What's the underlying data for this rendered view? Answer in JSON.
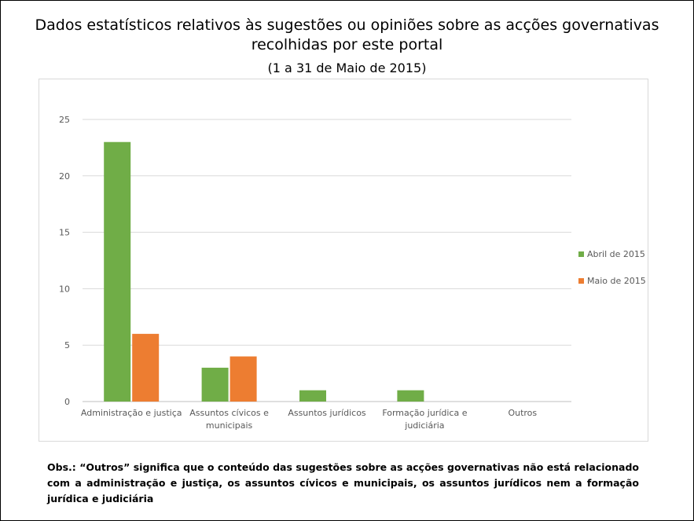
{
  "header": {
    "title": "Dados estatísticos relativos às sugestões ou opiniões sobre as acções governativas recolhidas por este portal",
    "subtitle": "(1 a 31 de Maio de 2015)"
  },
  "chart_data": {
    "type": "bar",
    "categories": [
      "Administração e justiça",
      "Assuntos cívicos e municipais",
      "Assuntos jurídicos",
      "Formação jurídica e judiciária",
      "Outros"
    ],
    "category_lines": [
      [
        "Administração e justiça"
      ],
      [
        "Assuntos cívicos e",
        "municipais"
      ],
      [
        "Assuntos jurídicos"
      ],
      [
        "Formação jurídica e",
        "judiciária"
      ],
      [
        "Outros"
      ]
    ],
    "series": [
      {
        "name": "Abril de 2015",
        "values": [
          23,
          3,
          1,
          1,
          0
        ],
        "color": "#70ad47"
      },
      {
        "name": "Maio de 2015",
        "values": [
          6,
          4,
          0,
          0,
          0
        ],
        "color": "#ed7d31"
      }
    ],
    "ylim": [
      0,
      25
    ],
    "yticks": [
      0,
      5,
      10,
      15,
      20,
      25
    ],
    "grid": true,
    "legend_position": "right"
  },
  "footer": {
    "note": "Obs.: “Outros” significa que o conteúdo das sugestões sobre as acções governativas não está relacionado com a administração e justiça, os assuntos cívicos e municipais, os assuntos jurídicos nem a formação jurídica e judiciária"
  }
}
